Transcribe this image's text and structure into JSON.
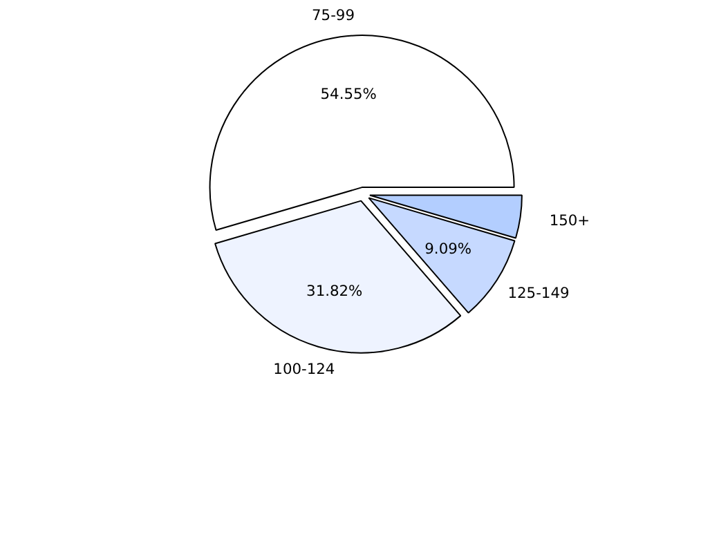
{
  "chart_data": {
    "type": "pie",
    "categories": [
      "75-99",
      "100-124",
      "125-149",
      "150+"
    ],
    "values": [
      54.55,
      31.82,
      9.09,
      4.55
    ],
    "colors": [
      "#ffffff",
      "#eef3ff",
      "#c6d9ff",
      "#b3ceff"
    ],
    "value_labels": [
      "54.55%",
      "31.82%",
      "9.09%",
      null
    ]
  }
}
